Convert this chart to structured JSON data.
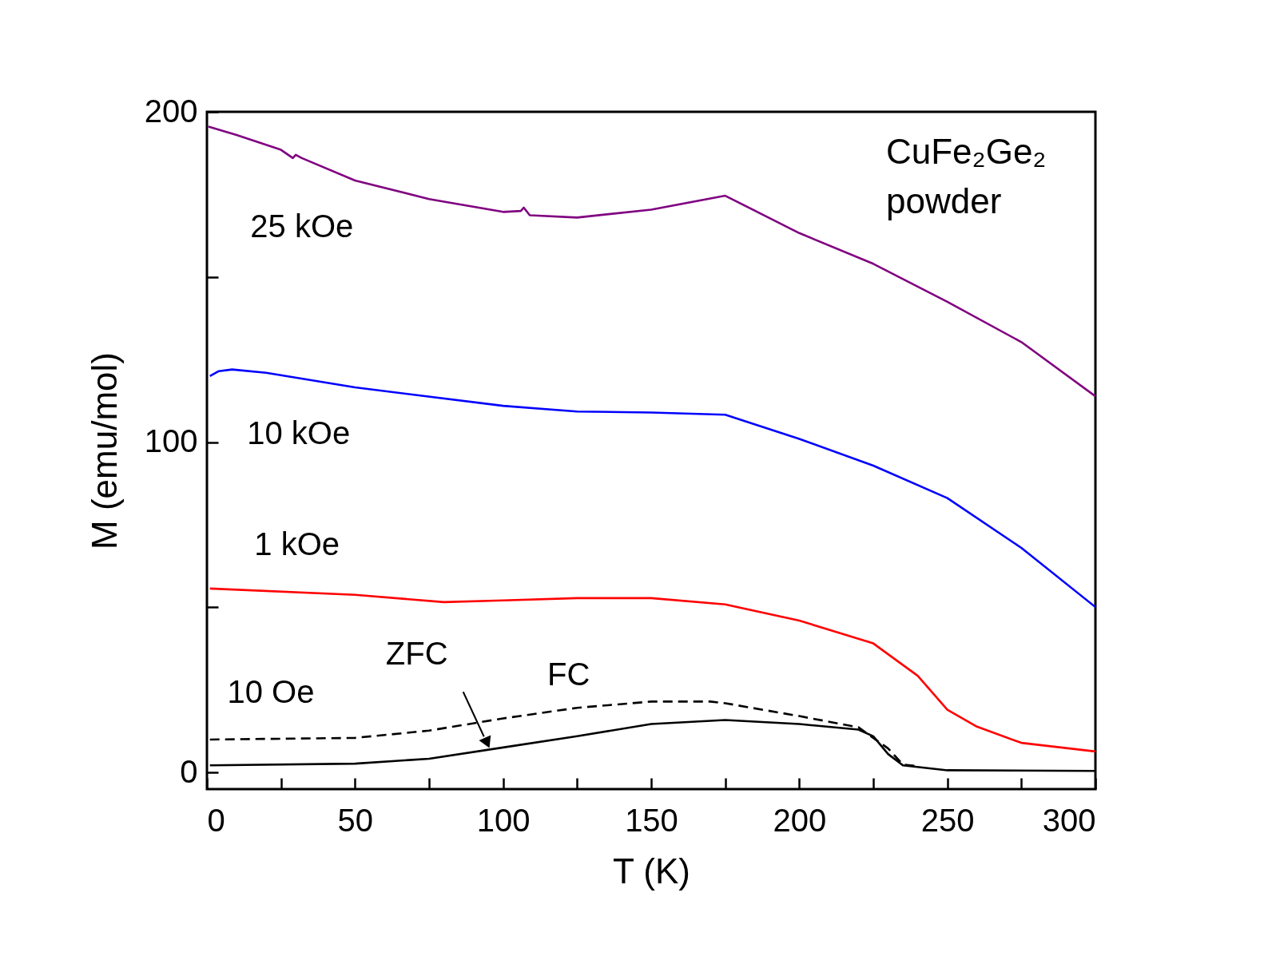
{
  "chart_data": {
    "type": "line",
    "xlabel": "T (K)",
    "ylabel": "M (emu/mol)",
    "xlim": [
      0,
      300
    ],
    "ylim": [
      -5,
      200
    ],
    "xticks": [
      0,
      {
        "value": 25,
        "label": null
      },
      50,
      {
        "value": 75,
        "label": null
      },
      100,
      {
        "value": 125,
        "label": null
      },
      150,
      {
        "value": 175,
        "label": null
      },
      200,
      {
        "value": 225,
        "label": null
      },
      250,
      {
        "value": 275,
        "label": null
      },
      300
    ],
    "yticks": [
      0,
      {
        "value": 50,
        "label": null
      },
      100,
      {
        "value": 150,
        "label": null
      },
      200
    ],
    "grid": false,
    "marker": "none",
    "line_style": "solid",
    "series": [
      {
        "name": "25 kOe",
        "color": "#800080",
        "x": [
          0.5,
          10,
          25,
          29,
          30,
          32,
          50,
          75,
          100,
          106,
          107,
          109,
          125,
          150,
          175,
          200,
          225,
          250,
          275,
          300
        ],
        "values": [
          195.5,
          193,
          188.5,
          186,
          187,
          186,
          179.2,
          173.6,
          169.7,
          170,
          171,
          168.7,
          168,
          170.4,
          174.6,
          163.3,
          154,
          142.5,
          130.3,
          113.9
        ]
      },
      {
        "name": "10 kOe",
        "color": "#0000ff",
        "x": [
          1,
          4,
          8.5,
          20,
          50,
          100,
          125,
          150,
          175,
          200,
          225,
          250,
          275,
          300
        ],
        "values": [
          120,
          121.5,
          122,
          121,
          116.6,
          111,
          109.3,
          109,
          108.3,
          101,
          92.9,
          83.1,
          68,
          50.1
        ]
      },
      {
        "name": "1 kOe",
        "color": "#ff0000",
        "x": [
          1,
          50,
          80,
          100,
          125,
          150,
          175,
          200,
          225,
          240,
          250,
          260,
          275,
          300
        ],
        "values": [
          55.7,
          53.8,
          51.6,
          52.1,
          52.8,
          52.8,
          50.9,
          46,
          39.1,
          29.3,
          19,
          13.9,
          9,
          6.4
        ]
      },
      {
        "name": "FC",
        "color": "#000000",
        "line_style": "dashed",
        "x": [
          1,
          50,
          75,
          100,
          125,
          150,
          170,
          175,
          200,
          220,
          230,
          235,
          240
        ],
        "values": [
          10,
          10.5,
          12.7,
          16.4,
          19.6,
          21.5,
          21.5,
          21,
          17.1,
          13.7,
          7.3,
          2.4,
          2
        ]
      },
      {
        "name": "ZFC",
        "color": "#000000",
        "x": [
          1,
          50,
          75,
          100,
          125,
          150,
          175,
          200,
          220,
          225,
          230,
          235,
          250,
          300
        ],
        "values": [
          2.2,
          2.7,
          4.2,
          7.6,
          11,
          14.7,
          15.9,
          14.7,
          13,
          11,
          5.6,
          2.2,
          0.7,
          0.5
        ]
      }
    ],
    "annotations": [
      "10 Oe",
      "CuFe₂Ge₂\npowder"
    ]
  }
}
